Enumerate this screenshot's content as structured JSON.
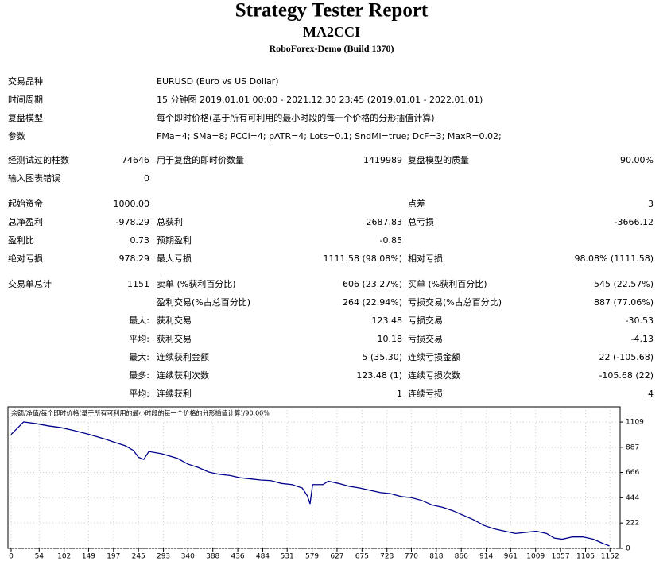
{
  "header": {
    "title": "Strategy Tester Report",
    "subtitle": "MA2CCI",
    "server": "RoboForex-Demo (Build 1370)"
  },
  "info": [
    [
      "交易品种",
      "EURUSD (Euro vs US Dollar)"
    ],
    [
      "时间周期",
      "15 分钟图 2019.01.01 00:00 - 2021.12.30 23:45 (2019.01.01 - 2022.01.01)"
    ],
    [
      "复盘模型",
      "每个即时价格(基于所有可利用的最小时段的每一个价格的分形插值计算)"
    ],
    [
      "参数",
      "FMa=4; SMa=8; PCCi=4; pATR=4; Lots=0.1; SndMl=true; DcF=3; MaxR=0.02;"
    ]
  ],
  "summary": {
    "rows": [
      [
        "经测试过的柱数",
        "74646",
        "用于复盘的即时价数量",
        "1419989",
        "复盘模型的质量",
        "90.00%"
      ],
      [
        "输入图表错误",
        "0",
        null,
        null,
        null,
        null
      ],
      [
        "起始资金",
        "1000.00",
        null,
        null,
        "点差",
        "3"
      ],
      [
        "总净盈利",
        "-978.29",
        "总获利",
        "2687.83",
        "总亏损",
        "-3666.12"
      ],
      [
        "盈利比",
        "0.73",
        "预期盈利",
        "-0.85",
        null,
        null
      ],
      [
        "绝对亏损",
        "978.29",
        "最大亏损",
        "1111.58 (98.08%)",
        "相对亏损",
        "98.08% (1111.58)"
      ],
      [
        "交易单总计",
        "1151",
        "卖单 (%获利百分比)",
        "606 (23.27%)",
        "买单 (%获利百分比)",
        "545 (22.57%)"
      ],
      [
        null,
        null,
        "盈利交易(%占总百分比)",
        "264 (22.94%)",
        "亏损交易(%占总百分比)",
        "887 (77.06%)"
      ],
      [
        null,
        "最大:",
        "获利交易",
        "123.48",
        "亏损交易",
        "-30.53"
      ],
      [
        null,
        "平均:",
        "获利交易",
        "10.18",
        "亏损交易",
        "-4.13"
      ],
      [
        null,
        "最大:",
        "连续获利金额",
        "5 (35.30)",
        "连续亏损金额",
        "22 (-105.68)"
      ],
      [
        null,
        "最多:",
        "连续获利次数",
        "123.48 (1)",
        "连续亏损次数",
        "-105.68 (22)"
      ],
      [
        null,
        "平均:",
        "连续获利",
        "1",
        "连续亏损",
        "4"
      ]
    ]
  },
  "chart": {
    "type": "line",
    "legend": [
      "余额",
      "净值",
      "每个即时价格(基于所有可利用的最小时段的每一个价格的分形插值计算)",
      "90.00%"
    ],
    "series": [
      {
        "name": "余额",
        "color": "#00008b",
        "x": [
          0,
          24,
          48,
          72,
          96,
          120,
          150,
          180,
          200,
          220,
          235,
          245,
          255,
          265,
          290,
          320,
          340,
          360,
          380,
          400,
          420,
          440,
          460,
          480,
          500,
          520,
          540,
          560,
          570,
          575,
          580,
          600,
          610,
          630,
          650,
          670,
          690,
          710,
          730,
          750,
          770,
          790,
          810,
          830,
          850,
          870,
          890,
          910,
          930,
          950,
          970,
          990,
          1010,
          1030,
          1045,
          1060,
          1080,
          1100,
          1120,
          1140,
          1151
        ],
        "values": [
          1000,
          1110,
          1095,
          1075,
          1060,
          1035,
          1000,
          960,
          930,
          900,
          860,
          800,
          780,
          850,
          830,
          790,
          740,
          710,
          670,
          650,
          640,
          620,
          610,
          600,
          595,
          570,
          560,
          530,
          460,
          390,
          560,
          560,
          590,
          570,
          545,
          530,
          510,
          490,
          480,
          455,
          445,
          420,
          380,
          360,
          330,
          290,
          250,
          200,
          170,
          150,
          130,
          140,
          150,
          130,
          90,
          80,
          100,
          100,
          80,
          40,
          21.71
        ]
      }
    ],
    "xlim": [
      0,
      1170
    ],
    "ylim": [
      0,
      1214
    ],
    "xticks": [
      0,
      54,
      102,
      149,
      197,
      245,
      293,
      340,
      388,
      436,
      484,
      531,
      579,
      627,
      675,
      723,
      770,
      818,
      866,
      914,
      961,
      1009,
      1057,
      1105,
      1152
    ],
    "yticks": [
      0,
      222,
      444,
      666,
      887,
      1109
    ],
    "grid": true
  }
}
